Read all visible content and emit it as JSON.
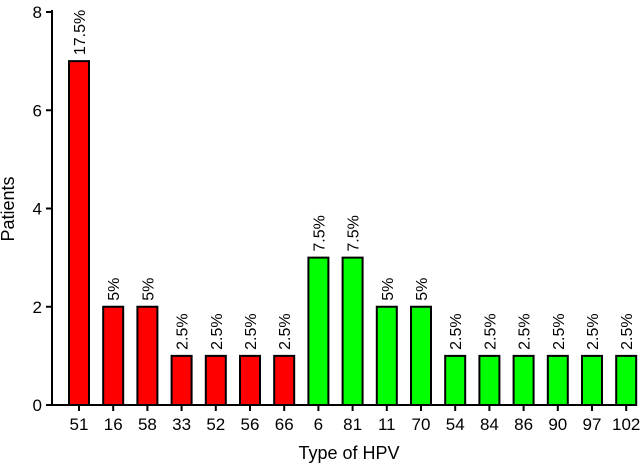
{
  "chart_data": {
    "type": "bar",
    "xlabel": "Type of HPV",
    "ylabel": "Patients",
    "ylim": [
      0,
      8
    ],
    "yticks": [
      0,
      2,
      4,
      6,
      8
    ],
    "grid": false,
    "categories": [
      "51",
      "16",
      "58",
      "33",
      "52",
      "56",
      "66",
      "6",
      "81",
      "11",
      "70",
      "54",
      "84",
      "86",
      "90",
      "97",
      "102"
    ],
    "values": [
      7,
      2,
      2,
      1,
      1,
      1,
      1,
      3,
      3,
      2,
      2,
      1,
      1,
      1,
      1,
      1,
      1
    ],
    "data_labels": [
      "17.5%",
      "5%",
      "5%",
      "2.5%",
      "2.5%",
      "2.5%",
      "2.5%",
      "7.5%",
      "7.5%",
      "5%",
      "5%",
      "2.5%",
      "2.5%",
      "2.5%",
      "2.5%",
      "2.5%",
      "2.5%"
    ],
    "colors": [
      "#ff0000",
      "#ff0000",
      "#ff0000",
      "#ff0000",
      "#ff0000",
      "#ff0000",
      "#ff0000",
      "#00ff00",
      "#00ff00",
      "#00ff00",
      "#00ff00",
      "#00ff00",
      "#00ff00",
      "#00ff00",
      "#00ff00",
      "#00ff00",
      "#00ff00"
    ]
  }
}
